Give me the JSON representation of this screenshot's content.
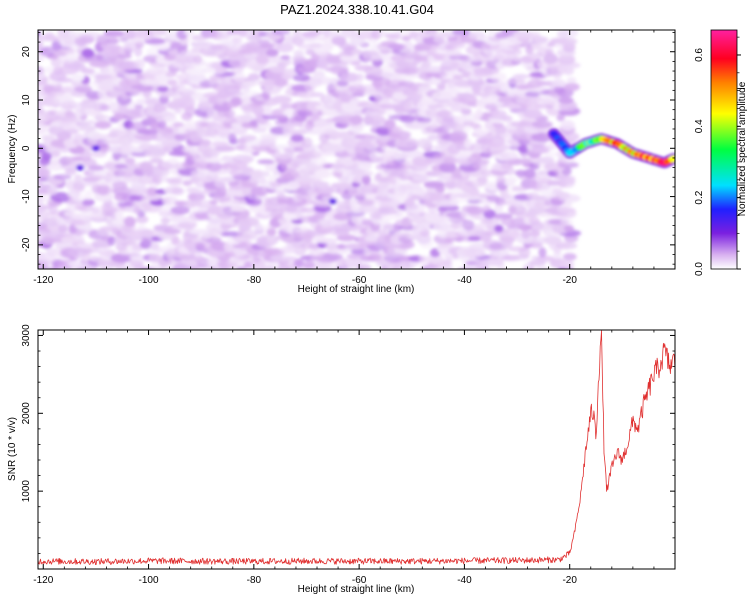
{
  "chart_data": [
    {
      "type": "heatmap",
      "title": "PAZ1.2024.338.10.41.G04",
      "xlabel": "Height of straight line (km)",
      "ylabel": "Frequency (Hz)",
      "xlim": [
        -121,
        0
      ],
      "ylim": [
        -25,
        24.5
      ],
      "x_ticks": [
        -120,
        -100,
        -80,
        -60,
        -40,
        -20
      ],
      "y_ticks": [
        -20,
        -10,
        0,
        10,
        20
      ],
      "colorbar": {
        "label": "Normalized spectral amplitude",
        "range": [
          0.0,
          0.67
        ],
        "ticks": [
          0.0,
          0.2,
          0.4,
          0.6
        ],
        "colors": [
          "#ffffff",
          "#d8b0f0",
          "#7a20e0",
          "#2020ff",
          "#00e0ff",
          "#00ff40",
          "#ffff00",
          "#ff8000",
          "#ff0020",
          "#ff20a0"
        ]
      },
      "background_noise": {
        "x_range": [
          -121,
          -20
        ],
        "amplitude_range": [
          0.02,
          0.1
        ]
      },
      "signal_track": {
        "x": [
          -23,
          -20,
          -17,
          -14,
          -11,
          -8,
          -5,
          -2,
          0
        ],
        "freq": [
          3,
          -1,
          1,
          2,
          1,
          -1,
          -2,
          -3,
          -2
        ],
        "amplitude": [
          0.2,
          0.3,
          0.38,
          0.45,
          0.55,
          0.52,
          0.6,
          0.62,
          0.5
        ]
      },
      "grid": false
    },
    {
      "type": "line",
      "xlabel": "Height of straight line (km)",
      "ylabel": "SNR (10 * v/v)",
      "xlim": [
        -121,
        0
      ],
      "ylim": [
        0,
        3070
      ],
      "x_ticks": [
        -120,
        -100,
        -80,
        -60,
        -40,
        -20
      ],
      "y_ticks": [
        1000,
        2000,
        3000
      ],
      "line_color": "#e03030",
      "series": [
        {
          "x": [
            -121,
            -110,
            -100,
            -90,
            -80,
            -70,
            -60,
            -50,
            -40,
            -30,
            -22,
            -20,
            -19,
            -18,
            -17,
            -16,
            -15.5,
            -15,
            -14.5,
            -14,
            -13.5,
            -13,
            -12,
            -11,
            -10,
            -9,
            -8,
            -7,
            -6,
            -5,
            -4,
            -3,
            -2,
            -1,
            0
          ],
          "y": [
            100,
            95,
            105,
            100,
            98,
            102,
            100,
            100,
            105,
            110,
            120,
            200,
            500,
            900,
            1500,
            2000,
            2000,
            1700,
            2500,
            3050,
            1600,
            1000,
            1300,
            1500,
            1400,
            1600,
            1900,
            1800,
            2100,
            2300,
            2500,
            2600,
            2800,
            2600,
            2700
          ]
        }
      ],
      "grid": false
    }
  ]
}
